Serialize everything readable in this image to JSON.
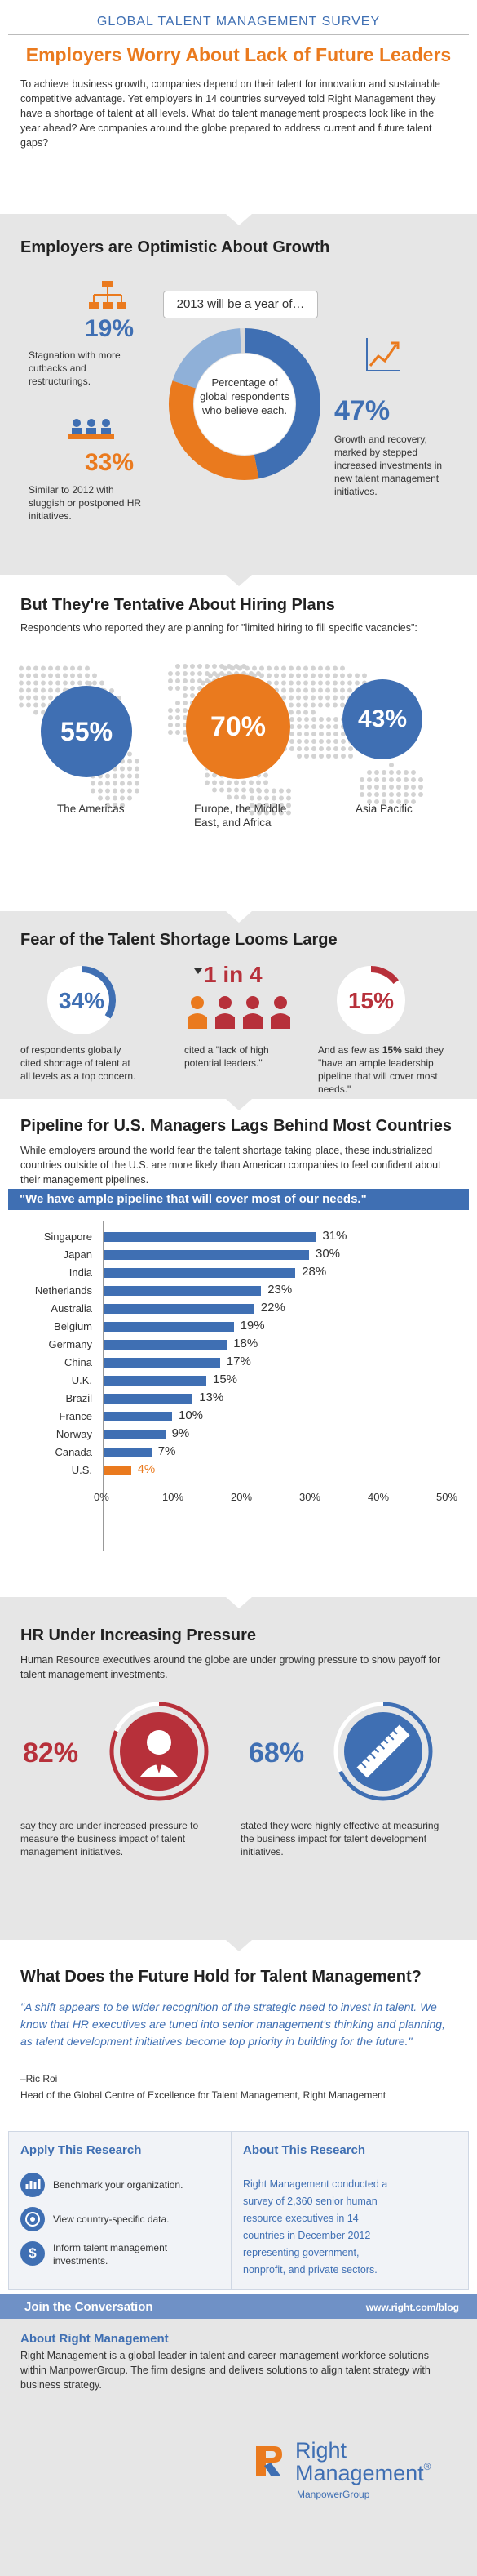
{
  "header": {
    "survey_title": "GLOBAL TALENT MANAGEMENT SURVEY",
    "headline": "Employers Worry About Lack of Future Leaders",
    "intro": "To achieve business growth, companies depend on their talent for innovation and sustainable competitive advantage. Yet employers in 14 countries surveyed told Right Management they have a shortage of talent at all levels. What do talent management prospects look like in the year ahead? Are companies around the globe prepared to address current and future talent gaps?"
  },
  "growth": {
    "title": "Employers are Optimistic About Growth",
    "bubble": "2013 will be a year of…",
    "center_text": "Percentage of global respondents who believe each.",
    "stagnation": {
      "value": "19%",
      "text": "Stagnation with more cutbacks and restructurings.",
      "fraction": 0.19
    },
    "similar": {
      "value": "33%",
      "text": "Similar to 2012 with sluggish or postponed HR initiatives.",
      "fraction": 0.33
    },
    "growth_recovery": {
      "value": "47%",
      "text": "Growth and recovery, marked by stepped increased investments in new talent management initiatives.",
      "fraction": 0.47
    },
    "colors": {
      "stagnation": "#8fb0d8",
      "similar": "#ea7a1e",
      "growth": "#3f6fb3"
    }
  },
  "hiring": {
    "title": "But They're Tentative About Hiring Plans",
    "intro": "Respondents who reported they are planning for \"limited hiring to fill specific vacancies\":",
    "regions": [
      {
        "value": "55%",
        "label": "The Americas",
        "color": "#3f6fb3"
      },
      {
        "value": "70%",
        "label": "Europe, the Middle East, and Africa",
        "color": "#ea7a1e"
      },
      {
        "value": "43%",
        "label": "Asia Pacific",
        "color": "#3f6fb3"
      }
    ]
  },
  "shortage": {
    "title": "Fear of the Talent Shortage Looms Large",
    "stat1": {
      "value": "34%",
      "text": "of respondents globally cited shortage of talent at all levels as a top concern.",
      "fraction": 0.34
    },
    "stat2": {
      "value": "1 in 4",
      "text": "cited a \"lack of high potential leaders.\""
    },
    "stat3": {
      "value": "15%",
      "text_a": "And as few as ",
      "text_b": "15%",
      "text_c": " said they \"have an ample leadership pipeline that will cover most needs.\"",
      "fraction": 0.15
    }
  },
  "pipeline": {
    "title": "Pipeline for U.S. Managers Lags Behind Most Countries",
    "intro": "While employers around the world fear the talent shortage taking place, these industrialized countries outside of the U.S. are more likely than American companies to feel confident about their management pipelines.",
    "banner": "\"We have ample pipeline that will cover most of our needs.\""
  },
  "chart_data": {
    "type": "bar",
    "orientation": "horizontal",
    "title": "\"We have ample pipeline that will cover most of our needs.\"",
    "categories": [
      "Singapore",
      "Japan",
      "India",
      "Netherlands",
      "Australia",
      "Belgium",
      "Germany",
      "China",
      "U.K.",
      "Brazil",
      "France",
      "Norway",
      "Canada",
      "U.S."
    ],
    "values": [
      31,
      30,
      28,
      23,
      22,
      19,
      18,
      17,
      15,
      13,
      10,
      9,
      7,
      4
    ],
    "value_labels": [
      "31%",
      "30%",
      "28%",
      "23%",
      "22%",
      "19%",
      "18%",
      "17%",
      "15%",
      "13%",
      "10%",
      "9%",
      "7%",
      "4%"
    ],
    "x_ticks": [
      "0%",
      "10%",
      "20%",
      "30%",
      "40%",
      "50%"
    ],
    "xlim": [
      0,
      50
    ],
    "bar_color": "#3f6fb3",
    "highlight_color": "#ea7a1e",
    "highlight_category": "U.S."
  },
  "hr": {
    "title": "HR Under Increasing Pressure",
    "intro": "Human Resource executives around the globe are under growing pressure to show payoff for talent management investments.",
    "stat1": {
      "value": "82%",
      "text": "say they are under increased pressure to measure the business impact of talent management initiatives.",
      "fraction": 0.82
    },
    "stat2": {
      "value": "68%",
      "text": "stated they were highly effective at measuring the business impact for talent development initiatives.",
      "fraction": 0.68
    }
  },
  "future": {
    "title": "What Does the Future Hold for Talent Management?",
    "quote": "\"A shift appears to be wider recognition of the strategic need to invest in talent. We know that HR executives are tuned into senior management's thinking and planning, as talent development initiatives become top priority in building for the future.\"",
    "author": "–Ric Roi",
    "author_title": "Head of the Global Centre of Excellence for Talent Management, Right Management"
  },
  "apply": {
    "title": "Apply This Research",
    "items": [
      "Benchmark your organization.",
      "View country-specific data.",
      "Inform talent management investments."
    ]
  },
  "about_research": {
    "title": "About This Research",
    "text": "Right Management conducted a survey of 2,360 senior human resource executives in 14 countries in December 2012 representing government, nonprofit, and private sectors."
  },
  "join": {
    "label": "Join the Conversation",
    "url": "www.right.com/blog"
  },
  "about_right": {
    "title": "About Right Management",
    "text": "Right Management is a global leader in talent and career management workforce solutions within ManpowerGroup. The firm designs and delivers solutions to align talent strategy with business strategy."
  },
  "logo": {
    "line1": "Right",
    "line2": "Management",
    "reg": "®",
    "sub": "ManpowerGroup"
  }
}
